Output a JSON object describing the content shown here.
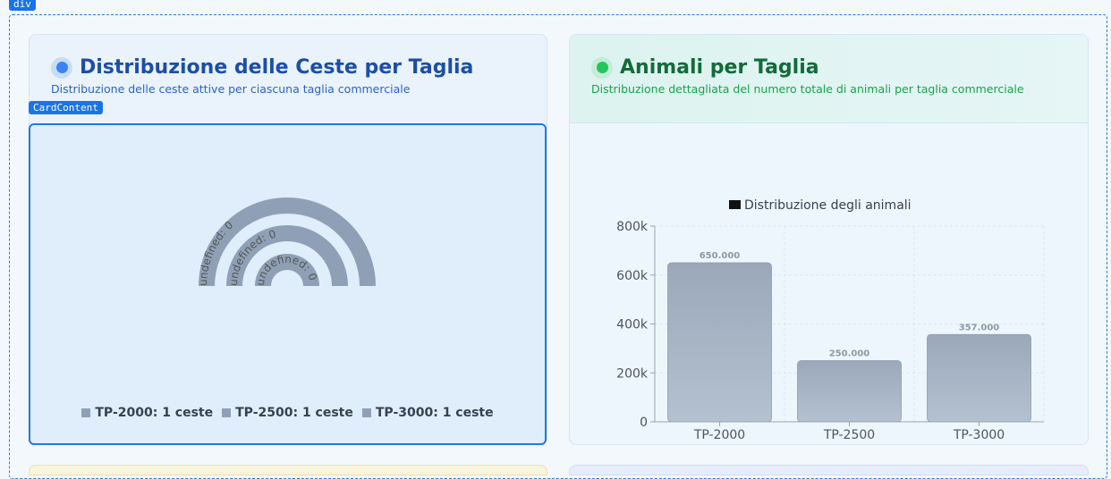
{
  "dev_tags": {
    "outer": "div",
    "content": "CardContent"
  },
  "left_card": {
    "title": "Distribuzione delle Ceste per Taglia",
    "subtitle": "Distribuzione delle ceste attive per ciascuna taglia commerciale",
    "accent_color": "#3b82f6",
    "ring_labels": [
      "undefined: 0",
      "undefined: 0",
      "undefined: 0"
    ],
    "legend": [
      {
        "label": "TP-2000: 1 ceste"
      },
      {
        "label": "TP-2500: 1 ceste"
      },
      {
        "label": "TP-3000: 1 ceste"
      }
    ]
  },
  "right_card": {
    "title": "Animali per Taglia",
    "subtitle": "Distribuzione dettagliata del numero totale di animali per taglia commerciale",
    "accent_color": "#22c55e"
  },
  "chart_data": {
    "type": "bar",
    "title": "",
    "legend": "Distribuzione degli animali",
    "categories": [
      "TP-2000",
      "TP-2500",
      "TP-3000"
    ],
    "values": [
      650000,
      250000,
      357000
    ],
    "value_labels": [
      "650.000",
      "250.000",
      "357.000"
    ],
    "yticks": [
      "0",
      "200k",
      "400k",
      "600k",
      "800k"
    ],
    "ylim": [
      0,
      800000
    ],
    "grid": true,
    "xlabel": "",
    "ylabel": ""
  }
}
